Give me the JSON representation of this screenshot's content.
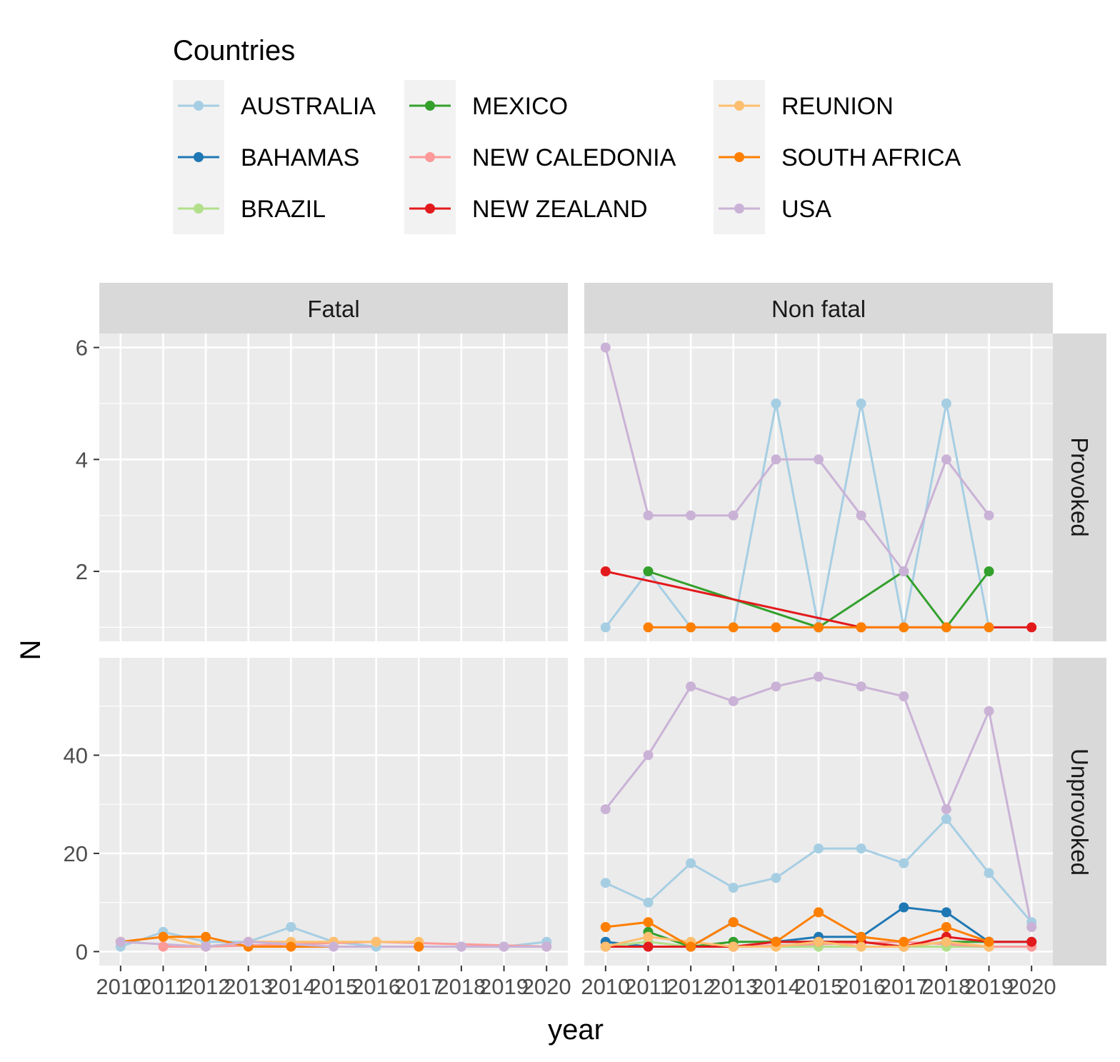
{
  "legend": {
    "title": "Countries",
    "entries": [
      {
        "name": "AUSTRALIA",
        "color": "#A6CEE3"
      },
      {
        "name": "BAHAMAS",
        "color": "#1F78B4"
      },
      {
        "name": "BRAZIL",
        "color": "#B2DF8A"
      },
      {
        "name": "MEXICO",
        "color": "#33A02C"
      },
      {
        "name": "NEW CALEDONIA",
        "color": "#FB9A99"
      },
      {
        "name": "NEW ZEALAND",
        "color": "#E31A1C"
      },
      {
        "name": "REUNION",
        "color": "#FDBF6F"
      },
      {
        "name": "SOUTH AFRICA",
        "color": "#FF7F00"
      },
      {
        "name": "USA",
        "color": "#CAB2D6"
      }
    ]
  },
  "chart_data": {
    "type": "line",
    "xlabel": "year",
    "ylabel": "N",
    "x_ticks": [
      2010,
      2011,
      2012,
      2013,
      2014,
      2015,
      2016,
      2017,
      2018,
      2019,
      2020
    ],
    "xlim": [
      2010,
      2020
    ],
    "column_facets": [
      "Fatal",
      "Non fatal"
    ],
    "row_facets": [
      "Provoked",
      "Unprovoked"
    ],
    "panels": [
      {
        "col": "Fatal",
        "row": "Provoked",
        "ylim": [
          1,
          6
        ],
        "y_ticks": [
          2,
          4,
          6
        ],
        "series": []
      },
      {
        "col": "Non fatal",
        "row": "Provoked",
        "ylim": [
          1,
          6
        ],
        "y_ticks": [
          2,
          4,
          6
        ],
        "series": [
          {
            "name": "AUSTRALIA",
            "points": [
              [
                2010,
                1
              ],
              [
                2011,
                2
              ],
              [
                2012,
                1
              ],
              [
                2013,
                1
              ],
              [
                2014,
                5
              ],
              [
                2015,
                1
              ],
              [
                2016,
                5
              ],
              [
                2017,
                1
              ],
              [
                2018,
                5
              ],
              [
                2019,
                1
              ]
            ]
          },
          {
            "name": "MEXICO",
            "points": [
              [
                2011,
                2
              ],
              [
                2015,
                1
              ],
              [
                2017,
                2
              ],
              [
                2018,
                1
              ],
              [
                2019,
                2
              ]
            ]
          },
          {
            "name": "NEW ZEALAND",
            "points": [
              [
                2010,
                2
              ],
              [
                2016,
                1
              ],
              [
                2020,
                1
              ]
            ]
          },
          {
            "name": "BRAZIL",
            "points": [
              [
                2017,
                1
              ]
            ]
          },
          {
            "name": "SOUTH AFRICA",
            "points": [
              [
                2011,
                1
              ],
              [
                2012,
                1
              ],
              [
                2013,
                1
              ],
              [
                2014,
                1
              ],
              [
                2015,
                1
              ],
              [
                2016,
                1
              ],
              [
                2017,
                1
              ],
              [
                2018,
                1
              ],
              [
                2019,
                1
              ]
            ]
          },
          {
            "name": "USA",
            "points": [
              [
                2010,
                6
              ],
              [
                2011,
                3
              ],
              [
                2012,
                3
              ],
              [
                2013,
                3
              ],
              [
                2014,
                4
              ],
              [
                2015,
                4
              ],
              [
                2016,
                3
              ],
              [
                2017,
                2
              ],
              [
                2018,
                4
              ],
              [
                2019,
                3
              ]
            ]
          }
        ]
      },
      {
        "col": "Fatal",
        "row": "Unprovoked",
        "ylim": [
          0,
          57
        ],
        "y_ticks": [
          0,
          20,
          40
        ],
        "series": [
          {
            "name": "AUSTRALIA",
            "points": [
              [
                2010,
                1
              ],
              [
                2011,
                4
              ],
              [
                2012,
                2
              ],
              [
                2013,
                2
              ],
              [
                2014,
                5
              ],
              [
                2015,
                2
              ],
              [
                2016,
                1
              ],
              [
                2017,
                1
              ],
              [
                2018,
                1
              ],
              [
                2019,
                1
              ],
              [
                2020,
                2
              ]
            ]
          },
          {
            "name": "NEW CALEDONIA",
            "points": [
              [
                2011,
                1
              ],
              [
                2012,
                1
              ],
              [
                2016,
                2
              ],
              [
                2020,
                1
              ]
            ]
          },
          {
            "name": "REUNION",
            "points": [
              [
                2011,
                3
              ],
              [
                2012,
                1
              ],
              [
                2013,
                2
              ],
              [
                2014,
                2
              ],
              [
                2015,
                2
              ],
              [
                2016,
                2
              ],
              [
                2017,
                2
              ]
            ]
          },
          {
            "name": "SOUTH AFRICA",
            "points": [
              [
                2010,
                2
              ],
              [
                2011,
                3
              ],
              [
                2012,
                3
              ],
              [
                2013,
                1
              ],
              [
                2014,
                1
              ],
              [
                2017,
                1
              ]
            ]
          },
          {
            "name": "USA",
            "points": [
              [
                2010,
                2
              ],
              [
                2012,
                1
              ],
              [
                2013,
                2
              ],
              [
                2015,
                1
              ],
              [
                2018,
                1
              ],
              [
                2019,
                1
              ],
              [
                2020,
                1
              ]
            ]
          }
        ]
      },
      {
        "col": "Non fatal",
        "row": "Unprovoked",
        "ylim": [
          0,
          57
        ],
        "y_ticks": [
          0,
          20,
          40
        ],
        "series": [
          {
            "name": "AUSTRALIA",
            "points": [
              [
                2010,
                14
              ],
              [
                2011,
                10
              ],
              [
                2012,
                18
              ],
              [
                2013,
                13
              ],
              [
                2014,
                15
              ],
              [
                2015,
                21
              ],
              [
                2016,
                21
              ],
              [
                2017,
                18
              ],
              [
                2018,
                27
              ],
              [
                2019,
                16
              ],
              [
                2020,
                6
              ]
            ]
          },
          {
            "name": "BAHAMAS",
            "points": [
              [
                2010,
                2
              ],
              [
                2011,
                1
              ],
              [
                2012,
                1
              ],
              [
                2013,
                6
              ],
              [
                2014,
                2
              ],
              [
                2015,
                3
              ],
              [
                2016,
                3
              ],
              [
                2017,
                9
              ],
              [
                2018,
                8
              ],
              [
                2019,
                2
              ],
              [
                2020,
                2
              ]
            ]
          },
          {
            "name": "BRAZIL",
            "points": [
              [
                2010,
                1
              ],
              [
                2011,
                2
              ],
              [
                2012,
                1
              ],
              [
                2013,
                1
              ],
              [
                2014,
                1
              ],
              [
                2015,
                1
              ],
              [
                2016,
                1
              ],
              [
                2017,
                1
              ],
              [
                2018,
                1
              ],
              [
                2019,
                1
              ]
            ]
          },
          {
            "name": "MEXICO",
            "points": [
              [
                2011,
                4
              ],
              [
                2012,
                1
              ],
              [
                2013,
                2
              ],
              [
                2014,
                2
              ],
              [
                2015,
                2
              ],
              [
                2016,
                2
              ],
              [
                2017,
                1
              ],
              [
                2018,
                2
              ],
              [
                2019,
                2
              ]
            ]
          },
          {
            "name": "NEW CALEDONIA",
            "points": [
              [
                2011,
                1
              ],
              [
                2013,
                1
              ],
              [
                2017,
                2
              ],
              [
                2019,
                1
              ],
              [
                2020,
                1
              ]
            ]
          },
          {
            "name": "NEW ZEALAND",
            "points": [
              [
                2010,
                1
              ],
              [
                2011,
                1
              ],
              [
                2012,
                1
              ],
              [
                2013,
                1
              ],
              [
                2014,
                2
              ],
              [
                2015,
                2
              ],
              [
                2016,
                2
              ],
              [
                2017,
                1
              ],
              [
                2018,
                3
              ],
              [
                2019,
                2
              ],
              [
                2020,
                2
              ]
            ]
          },
          {
            "name": "REUNION",
            "points": [
              [
                2010,
                1
              ],
              [
                2011,
                3
              ],
              [
                2012,
                2
              ],
              [
                2013,
                1
              ],
              [
                2014,
                1
              ],
              [
                2015,
                2
              ],
              [
                2016,
                1
              ],
              [
                2017,
                1
              ],
              [
                2018,
                2
              ],
              [
                2019,
                1
              ]
            ]
          },
          {
            "name": "SOUTH AFRICA",
            "points": [
              [
                2010,
                5
              ],
              [
                2011,
                6
              ],
              [
                2012,
                1
              ],
              [
                2013,
                6
              ],
              [
                2014,
                2
              ],
              [
                2015,
                8
              ],
              [
                2016,
                3
              ],
              [
                2017,
                2
              ],
              [
                2018,
                5
              ],
              [
                2019,
                2
              ]
            ]
          },
          {
            "name": "USA",
            "points": [
              [
                2010,
                29
              ],
              [
                2011,
                40
              ],
              [
                2012,
                54
              ],
              [
                2013,
                51
              ],
              [
                2014,
                54
              ],
              [
                2015,
                56
              ],
              [
                2016,
                54
              ],
              [
                2017,
                52
              ],
              [
                2018,
                29
              ],
              [
                2019,
                49
              ],
              [
                2020,
                5
              ]
            ]
          }
        ]
      }
    ]
  }
}
